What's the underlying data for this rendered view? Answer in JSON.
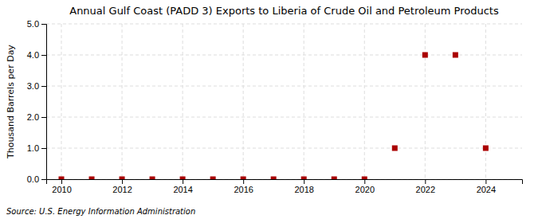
{
  "chart_data": {
    "type": "scatter",
    "title": "Annual Gulf Coast (PADD 3) Exports to Liberia of Crude Oil and Petroleum Products",
    "ylabel": "Thousand Barrels per Day",
    "annotations": [
      "Source: U.S. Energy Information Administration"
    ],
    "x": [
      2010,
      2011,
      2012,
      2013,
      2014,
      2015,
      2016,
      2017,
      2018,
      2019,
      2020,
      2021,
      2022,
      2023,
      2024
    ],
    "values": [
      0.0,
      0.0,
      0.0,
      0.0,
      0.0,
      0.0,
      0.0,
      0.0,
      0.0,
      0.0,
      0.0,
      1.0,
      4.0,
      4.0,
      1.0
    ],
    "color": "#aa0000",
    "marker": "square",
    "xlim": [
      2009.5,
      2025.2
    ],
    "xticks": [
      2010,
      2012,
      2014,
      2016,
      2018,
      2020,
      2022,
      2024
    ],
    "ylim": [
      0.0,
      5.0
    ],
    "yticks": [
      {
        "value": 0.0,
        "label": "0.0"
      },
      {
        "value": 1.0,
        "label": "1.0"
      },
      {
        "value": 2.0,
        "label": "2.0"
      },
      {
        "value": 3.0,
        "label": "3.0"
      },
      {
        "value": 4.0,
        "label": "4.0"
      },
      {
        "value": 5.0,
        "label": "5.0"
      }
    ],
    "grid": true
  }
}
